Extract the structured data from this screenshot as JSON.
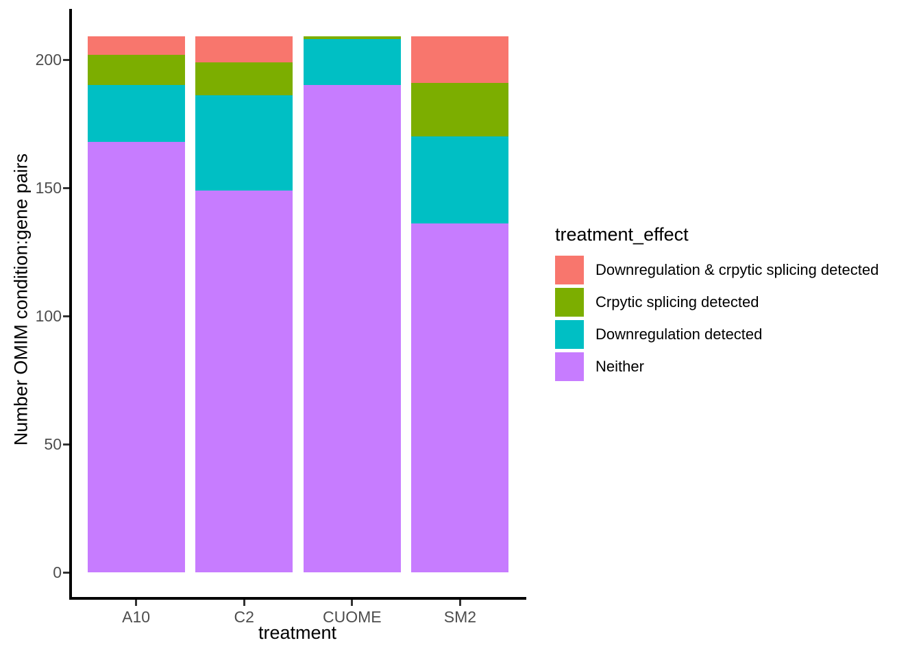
{
  "chart_data": {
    "type": "bar",
    "stacked": true,
    "categories": [
      "A10",
      "C2",
      "CUOME",
      "SM2"
    ],
    "series": [
      {
        "name": "Downregulation & crpytic splicing detected",
        "color": "#F8766D",
        "values": [
          7,
          10,
          0,
          18
        ]
      },
      {
        "name": "Crpytic splicing detected",
        "color": "#7CAE00",
        "values": [
          12,
          13,
          1,
          21
        ]
      },
      {
        "name": "Downregulation detected",
        "color": "#00BFC4",
        "values": [
          22,
          37,
          18,
          34
        ]
      },
      {
        "name": "Neither",
        "color": "#C77CFF",
        "values": [
          168,
          149,
          190,
          136
        ]
      }
    ],
    "xlabel": "treatment",
    "ylabel": "Number OMIM condition:gene pairs",
    "yticks": [
      0,
      50,
      100,
      150,
      200
    ],
    "ylim": [
      0,
      219
    ],
    "legend_title": "treatment_effect",
    "legend_position": "right",
    "grid": false
  },
  "style_colors": {
    "axis_line": "#000000",
    "tick_mark": "#333333",
    "tick_label": "#4D4D4D",
    "background": "#FFFFFF"
  }
}
